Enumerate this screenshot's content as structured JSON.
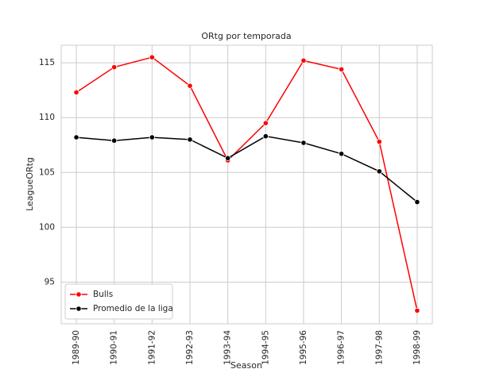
{
  "chart_data": {
    "type": "line",
    "title": "ORtg por temporada",
    "x_label": "Season",
    "y_label": "LeagueORtg",
    "categories": [
      "1989-90",
      "1990-91",
      "1991-92",
      "1992-93",
      "1993-94",
      "1994-95",
      "1995-96",
      "1996-97",
      "1997-98",
      "1998-99"
    ],
    "series": [
      {
        "name": "Bulls",
        "color": "#ff0000",
        "values": [
          112.3,
          114.6,
          115.5,
          112.9,
          106.1,
          109.5,
          115.2,
          114.4,
          107.8,
          92.4
        ]
      },
      {
        "name": "Promedio de la liga",
        "color": "#000000",
        "values": [
          108.2,
          107.9,
          108.2,
          108.0,
          106.3,
          108.3,
          107.7,
          106.7,
          105.1,
          102.3
        ]
      }
    ],
    "ylim": [
      91.2,
      116.6
    ],
    "yticks": [
      95,
      100,
      105,
      110,
      115
    ],
    "grid": true,
    "legend": "lower left"
  }
}
